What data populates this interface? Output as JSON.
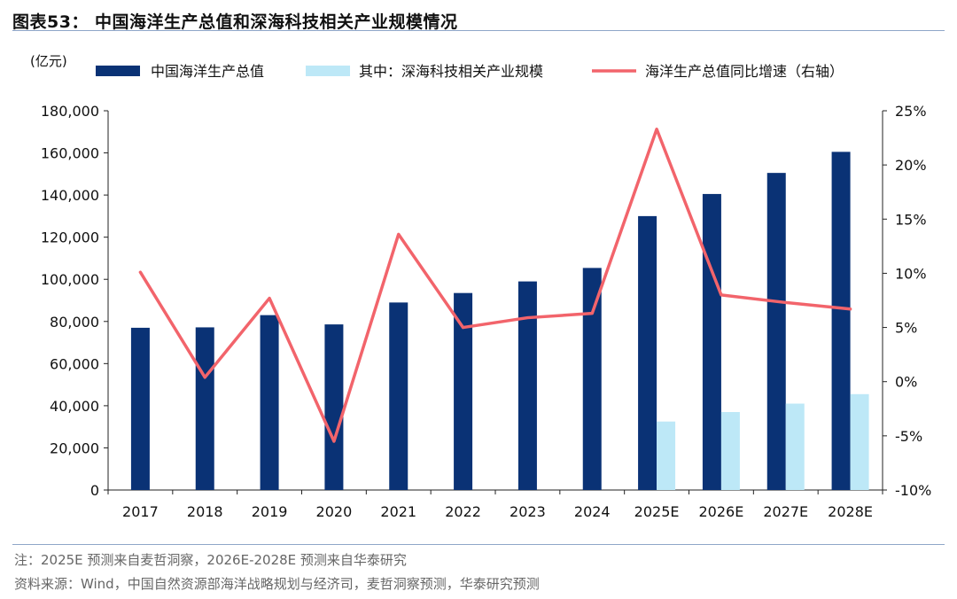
{
  "figure": {
    "title": "图表53：  中国海洋生产总值和深海科技相关产业规模情况",
    "note": "注：2025E 预测来自麦哲洞察，2026E-2028E 预测来自华泰研究",
    "source": "资料来源：Wind，中国自然资源部海洋战略规划与经济司，麦哲洞察预测，华泰研究预测"
  },
  "colors": {
    "bar_total": "#0a3275",
    "bar_deepsea": "#bde8f7",
    "line_growth": "#f2646b",
    "axis": "#222222",
    "rule": "#8fa6c8"
  },
  "chart_data": {
    "type": "bar",
    "unit_label": "(亿元)",
    "categories": [
      "2017",
      "2018",
      "2019",
      "2020",
      "2021",
      "2022",
      "2023",
      "2024",
      "2025E",
      "2026E",
      "2027E",
      "2028E"
    ],
    "series": [
      {
        "name": "中国海洋生产总值",
        "kind": "bar",
        "axis": "left",
        "values": [
          77000,
          77200,
          83000,
          78600,
          89000,
          93500,
          99000,
          105400,
          130000,
          140500,
          150500,
          160500
        ]
      },
      {
        "name": "其中：深海科技相关产业规模",
        "kind": "bar",
        "axis": "left",
        "values": [
          null,
          null,
          null,
          null,
          null,
          null,
          null,
          null,
          32500,
          37000,
          41000,
          45500
        ]
      },
      {
        "name": "海洋生产总值同比增速（右轴）",
        "kind": "line",
        "axis": "right",
        "values": [
          10.1,
          0.4,
          7.7,
          -5.5,
          13.6,
          5.0,
          5.9,
          6.3,
          23.3,
          8.0,
          7.3,
          6.7
        ]
      }
    ],
    "y_left": {
      "min": 0,
      "max": 180000,
      "step": 20000,
      "ticks": [
        "0",
        "20,000",
        "40,000",
        "60,000",
        "80,000",
        "100,000",
        "120,000",
        "140,000",
        "160,000",
        "180,000"
      ]
    },
    "y_right": {
      "min": -10,
      "max": 25,
      "step": 5,
      "ticks": [
        "-10%",
        "-5%",
        "0%",
        "5%",
        "10%",
        "15%",
        "20%",
        "25%"
      ]
    },
    "legend_position": "top",
    "grid": false
  }
}
